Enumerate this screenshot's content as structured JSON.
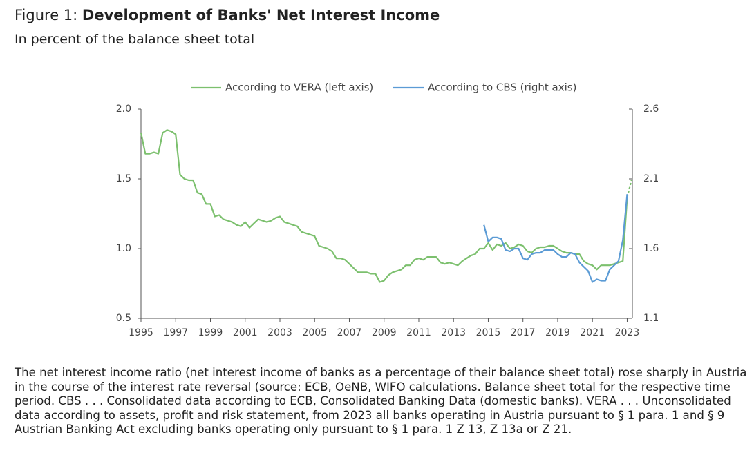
{
  "chart_data": {
    "type": "line",
    "figure_label": "Figure 1:",
    "title": "Development of Banks' Net Interest Income",
    "subtitle": "In percent of the balance sheet total",
    "note": "The net interest income ratio (net interest income of banks as a percentage of their balance sheet total) rose sharply in Austria in the course of the interest rate reversal (source: ECB, OeNB, WIFO calculations. Balance sheet total for the respective time period. CBS . . . Consolidated data according to ECB, Consolidated Banking Data (domestic banks). VERA . . . Unconsolidated data according to assets, profit and risk statement, from 2023 all banks operating in Austria pursuant to § 1 para. 1 and § 9 Austrian Banking Act excluding banks operating only pursuant to § 1 para. 1 Z 13, Z 13a or Z 21.",
    "x": [
      1995,
      1995.25,
      1995.5,
      1995.75,
      1996,
      1996.25,
      1996.5,
      1996.75,
      1997,
      1997.25,
      1997.5,
      1997.75,
      1998,
      1998.25,
      1998.5,
      1998.75,
      1999,
      1999.25,
      1999.5,
      1999.75,
      2000,
      2000.25,
      2000.5,
      2000.75,
      2001,
      2001.25,
      2001.5,
      2001.75,
      2002,
      2002.25,
      2002.5,
      2002.75,
      2003,
      2003.25,
      2003.5,
      2003.75,
      2004,
      2004.25,
      2004.5,
      2004.75,
      2005,
      2005.25,
      2005.5,
      2005.75,
      2006,
      2006.25,
      2006.5,
      2006.75,
      2007,
      2007.25,
      2007.5,
      2007.75,
      2008,
      2008.25,
      2008.5,
      2008.75,
      2009,
      2009.25,
      2009.5,
      2009.75,
      2010,
      2010.25,
      2010.5,
      2010.75,
      2011,
      2011.25,
      2011.5,
      2011.75,
      2012,
      2012.25,
      2012.5,
      2012.75,
      2013,
      2013.25,
      2013.5,
      2013.75,
      2014,
      2014.25,
      2014.5,
      2014.75,
      2015,
      2015.25,
      2015.5,
      2015.75,
      2016,
      2016.25,
      2016.5,
      2016.75,
      2017,
      2017.25,
      2017.5,
      2017.75,
      2018,
      2018.25,
      2018.5,
      2018.75,
      2019,
      2019.25,
      2019.5,
      2019.75,
      2020,
      2020.25,
      2020.5,
      2020.75,
      2021,
      2021.25,
      2021.5,
      2021.75,
      2022,
      2022.25,
      2022.5,
      2022.75,
      2023,
      2023.25
    ],
    "series": [
      {
        "name": "According to VERA (left axis)",
        "color": "#7cc06e",
        "axis": "y",
        "dashed_from": 2023,
        "values": [
          1.83,
          1.68,
          1.68,
          1.69,
          1.68,
          1.83,
          1.85,
          1.84,
          1.82,
          1.53,
          1.5,
          1.49,
          1.49,
          1.4,
          1.39,
          1.32,
          1.32,
          1.23,
          1.24,
          1.21,
          1.2,
          1.19,
          1.17,
          1.16,
          1.19,
          1.15,
          1.18,
          1.21,
          1.2,
          1.19,
          1.2,
          1.22,
          1.23,
          1.19,
          1.18,
          1.17,
          1.16,
          1.12,
          1.11,
          1.1,
          1.09,
          1.02,
          1.01,
          1.0,
          0.98,
          0.93,
          0.93,
          0.92,
          0.89,
          0.86,
          0.83,
          0.83,
          0.83,
          0.82,
          0.82,
          0.76,
          0.77,
          0.81,
          0.83,
          0.84,
          0.85,
          0.88,
          0.88,
          0.92,
          0.93,
          0.92,
          0.94,
          0.94,
          0.94,
          0.9,
          0.89,
          0.9,
          0.89,
          0.88,
          0.91,
          0.93,
          0.95,
          0.96,
          1.0,
          1.0,
          1.04,
          0.99,
          1.03,
          1.02,
          1.04,
          1.0,
          1.01,
          1.03,
          1.02,
          0.98,
          0.97,
          1.0,
          1.01,
          1.01,
          1.02,
          1.02,
          1.0,
          0.98,
          0.97,
          0.97,
          0.96,
          0.96,
          0.91,
          0.89,
          0.88,
          0.85,
          0.88,
          0.88,
          0.88,
          0.89,
          0.9,
          0.91,
          1.37,
          1.49
        ]
      },
      {
        "name": "According to CBS (right axis)",
        "color": "#5b9bd5",
        "axis": "y2",
        "values": [
          null,
          null,
          null,
          null,
          null,
          null,
          null,
          null,
          null,
          null,
          null,
          null,
          null,
          null,
          null,
          null,
          null,
          null,
          null,
          null,
          null,
          null,
          null,
          null,
          null,
          null,
          null,
          null,
          null,
          null,
          null,
          null,
          null,
          null,
          null,
          null,
          null,
          null,
          null,
          null,
          null,
          null,
          null,
          null,
          null,
          null,
          null,
          null,
          null,
          null,
          null,
          null,
          null,
          null,
          null,
          null,
          null,
          null,
          null,
          null,
          null,
          null,
          null,
          null,
          null,
          null,
          null,
          null,
          null,
          null,
          null,
          null,
          null,
          null,
          null,
          null,
          null,
          null,
          null,
          1.77,
          1.65,
          1.68,
          1.68,
          1.67,
          1.59,
          1.58,
          1.6,
          1.6,
          1.53,
          1.52,
          1.56,
          1.57,
          1.57,
          1.59,
          1.59,
          1.59,
          1.56,
          1.54,
          1.54,
          1.57,
          1.56,
          1.5,
          1.47,
          1.44,
          1.36,
          1.38,
          1.37,
          1.37,
          1.45,
          1.48,
          1.51,
          1.66,
          1.99,
          null
        ]
      }
    ],
    "xlim": [
      1995,
      2023.3
    ],
    "xticks": [
      1995,
      1997,
      1999,
      2001,
      2003,
      2005,
      2007,
      2009,
      2011,
      2013,
      2015,
      2017,
      2019,
      2021,
      2023
    ],
    "ylim": [
      0.5,
      2.0
    ],
    "yticks": [
      0.5,
      {
        "value": 1,
        "label": "1.0"
      },
      1.5,
      {
        "value": 2,
        "label": "2.0"
      }
    ],
    "y2lim": [
      1.1,
      2.6
    ],
    "y2ticks": [
      1.1,
      1.6,
      2.1,
      2.6
    ],
    "legend": "top"
  }
}
